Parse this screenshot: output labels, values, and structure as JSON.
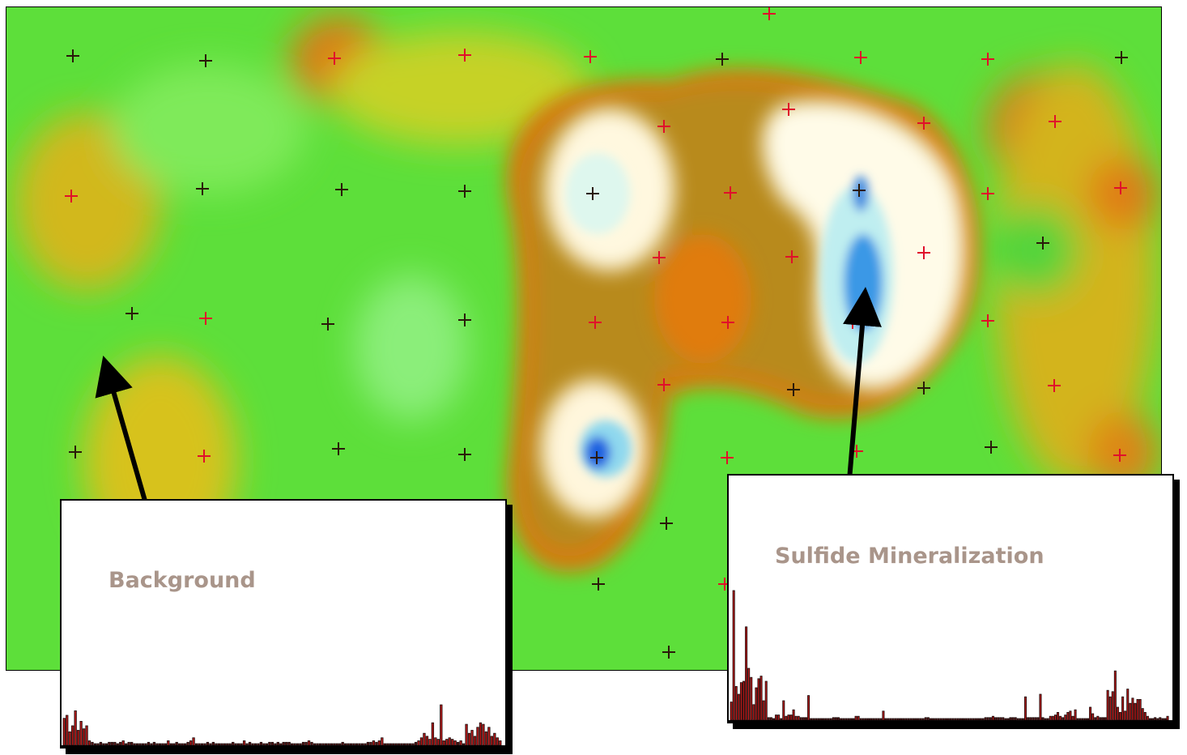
{
  "labels": {
    "background": "Background",
    "sulfide": "Sulfide Mineralization"
  },
  "colors": {
    "field_green": "#5de03a",
    "anomaly_orange": "#e08a12",
    "anomaly_core": "#fffbe6",
    "low_blue": "#1466e8",
    "bar_fill": "#b01818",
    "bar_fill_dark": "#5a1818",
    "marker_red": "#e0102a",
    "marker_dark": "#2a1a0a"
  },
  "chart_data": [
    {
      "type": "bar",
      "title": "Background",
      "ylim": [
        0,
        100
      ],
      "values": [
        18,
        20,
        9,
        13,
        23,
        10,
        16,
        11,
        13,
        3,
        2,
        1,
        1,
        2,
        1,
        1,
        2,
        2,
        2,
        1,
        2,
        3,
        1,
        2,
        2,
        1,
        1,
        1,
        1,
        1,
        2,
        1,
        2,
        1,
        1,
        1,
        1,
        3,
        1,
        1,
        2,
        1,
        1,
        1,
        2,
        3,
        5,
        1,
        1,
        1,
        1,
        2,
        1,
        2,
        1,
        1,
        1,
        1,
        1,
        1,
        2,
        1,
        1,
        1,
        3,
        1,
        2,
        1,
        1,
        1,
        2,
        1,
        1,
        2,
        2,
        1,
        2,
        1,
        2,
        2,
        2,
        1,
        1,
        1,
        1,
        2,
        2,
        3,
        2,
        1,
        1,
        1,
        1,
        1,
        1,
        1,
        1,
        1,
        1,
        2,
        1,
        1,
        1,
        1,
        1,
        1,
        1,
        1,
        2,
        2,
        3,
        2,
        3,
        5,
        1,
        1,
        1,
        1,
        1,
        1,
        1,
        1,
        1,
        1,
        1,
        2,
        3,
        5,
        8,
        6,
        4,
        15,
        5,
        4,
        27,
        3,
        4,
        5,
        4,
        3,
        2,
        3,
        1,
        14,
        8,
        10,
        6,
        12,
        15,
        14,
        9,
        12,
        6,
        8,
        5,
        3
      ],
      "series_colors_note": ""
    },
    {
      "type": "bar",
      "title": "Sulfide Mineralization",
      "ylim": [
        0,
        100
      ],
      "values": [
        14,
        100,
        26,
        20,
        29,
        30,
        72,
        40,
        33,
        12,
        25,
        32,
        34,
        15,
        30,
        2,
        2,
        1,
        4,
        4,
        1,
        15,
        3,
        4,
        4,
        8,
        3,
        3,
        2,
        2,
        2,
        19,
        1,
        1,
        1,
        1,
        1,
        1,
        1,
        1,
        1,
        2,
        2,
        2,
        1,
        1,
        1,
        1,
        1,
        1,
        3,
        3,
        1,
        1,
        1,
        1,
        1,
        1,
        1,
        1,
        1,
        7,
        1,
        1,
        1,
        1,
        1,
        1,
        1,
        1,
        1,
        1,
        1,
        1,
        1,
        1,
        1,
        1,
        2,
        2,
        1,
        1,
        1,
        1,
        1,
        1,
        1,
        1,
        1,
        1,
        1,
        1,
        1,
        1,
        1,
        1,
        1,
        1,
        1,
        1,
        1,
        1,
        2,
        2,
        2,
        3,
        2,
        2,
        2,
        2,
        1,
        1,
        2,
        2,
        2,
        1,
        1,
        1,
        18,
        2,
        2,
        2,
        2,
        2,
        20,
        2,
        1,
        1,
        3,
        3,
        4,
        6,
        3,
        2,
        4,
        6,
        7,
        3,
        8,
        1,
        1,
        1,
        1,
        1,
        10,
        5,
        2,
        3,
        2,
        2,
        2,
        23,
        18,
        22,
        38,
        10,
        6,
        18,
        7,
        24,
        13,
        17,
        13,
        16,
        16,
        9,
        6,
        3,
        1,
        1,
        2,
        1,
        2,
        1,
        1,
        3
      ]
    }
  ]
}
